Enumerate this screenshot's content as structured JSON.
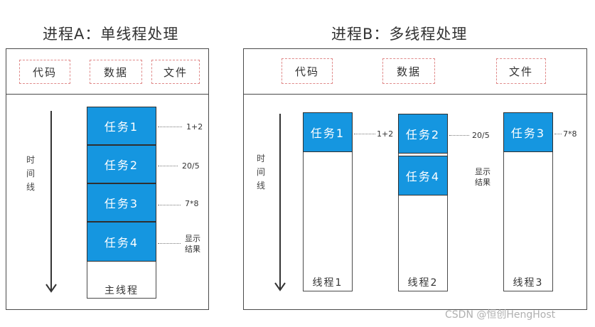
{
  "panel_a": {
    "title": "进程A：单线程处理",
    "resources": [
      "代码",
      "数据",
      "文件"
    ],
    "timeline_label": "时间线",
    "tasks": [
      "任务1",
      "任务2",
      "任务3",
      "任务4"
    ],
    "annotations": [
      "1+2",
      "20/5",
      "7*8",
      "显示",
      "结果"
    ],
    "thread_label": "主线程"
  },
  "panel_b": {
    "title": "进程B：多线程处理",
    "resources": [
      "代码",
      "数据",
      "文件"
    ],
    "timeline_label": "时间线",
    "threads": [
      {
        "label": "线程1",
        "tasks": [
          "任务1"
        ],
        "annotations": [
          "1+2"
        ]
      },
      {
        "label": "线程2",
        "tasks": [
          "任务2",
          "任务4"
        ],
        "annotations": [
          "20/5",
          "显示",
          "结果"
        ]
      },
      {
        "label": "线程3",
        "tasks": [
          "任务3"
        ],
        "annotations": [
          "7*8"
        ]
      }
    ]
  },
  "colors": {
    "task_fill": "#1596e0",
    "resource_border": "#e08a8a"
  },
  "watermark": "CSDN @恒创HengHost"
}
